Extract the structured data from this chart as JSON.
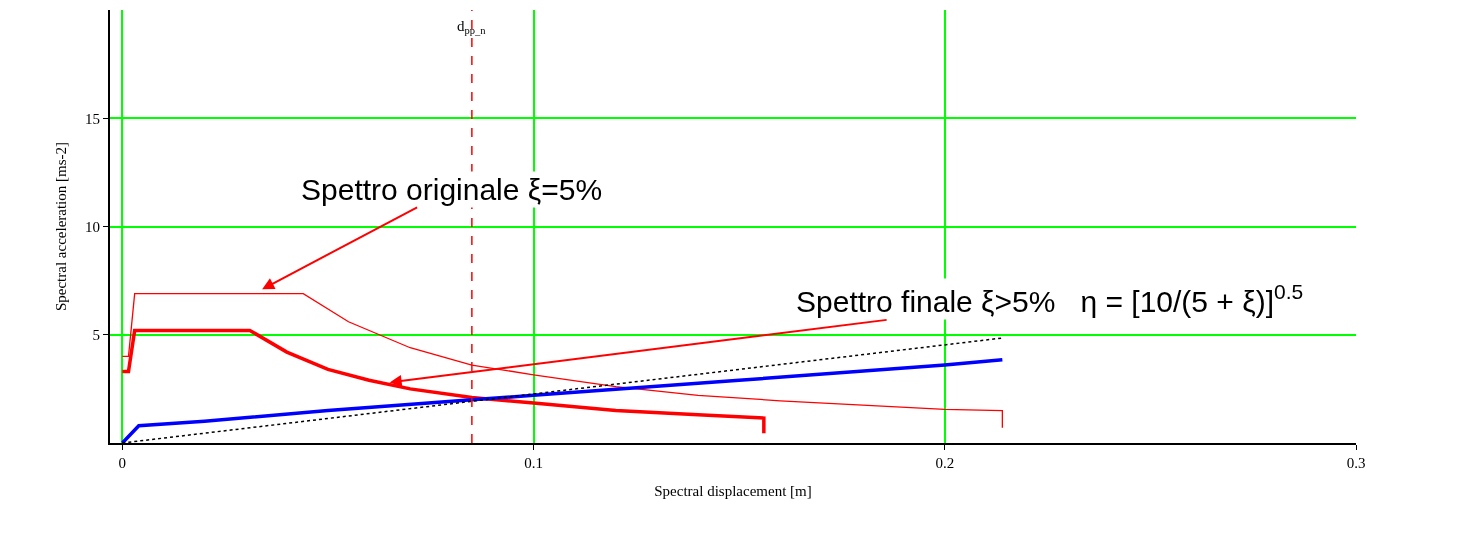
{
  "chart_data": {
    "type": "line",
    "xlabel": "Spectral displacement [m]",
    "ylabel": "Spectral acceleration [ms-2]",
    "xlim": [
      -0.003,
      0.3
    ],
    "ylim": [
      0,
      20
    ],
    "xticks": [
      0,
      0.1,
      0.2,
      0.3
    ],
    "yticks": [
      5,
      10,
      15
    ],
    "grid": true,
    "marker": "none",
    "series": [
      {
        "color": "#ff0000",
        "x": [
          0,
          0.0015,
          0.003,
          0.044,
          0.055,
          0.07,
          0.085,
          0.1,
          0.12,
          0.14,
          0.16,
          0.18,
          0.2,
          0.214,
          0.214
        ],
        "values": [
          4.0,
          4.0,
          6.9,
          6.9,
          5.6,
          4.4,
          3.6,
          3.15,
          2.6,
          2.2,
          1.95,
          1.75,
          1.55,
          1.5,
          0.7
        ]
      },
      {
        "color": "#ff0000",
        "x": [
          0,
          0.0015,
          0.003,
          0.031,
          0.04,
          0.05,
          0.06,
          0.07,
          0.085,
          0.1,
          0.12,
          0.14,
          0.156,
          0.156
        ],
        "values": [
          3.3,
          3.3,
          5.2,
          5.2,
          4.2,
          3.4,
          2.9,
          2.5,
          2.1,
          1.85,
          1.5,
          1.3,
          1.15,
          0.45
        ]
      },
      {
        "color": "#0000ff",
        "x": [
          0,
          0.004,
          0.02,
          0.05,
          0.085,
          0.1,
          0.15,
          0.2,
          0.214
        ],
        "values": [
          0,
          0.8,
          1.0,
          1.5,
          2.0,
          2.2,
          2.9,
          3.6,
          3.85
        ]
      },
      {
        "color": "#000000",
        "line_style": "dotted",
        "x": [
          0,
          0.214
        ],
        "values": [
          0,
          4.85
        ]
      }
    ],
    "ref_lines": [
      {
        "axis": "x",
        "value": 0.085,
        "label": "d$_{pp_n}$",
        "color": "#ff0000",
        "line_style": "dashed"
      }
    ],
    "annotations": [
      {
        "text": "Spettro originale ξ=5%",
        "x": 0.034,
        "y": 7.1
      },
      {
        "text": "Spettro finale ξ>5%   η = [10/(5 + ξ)]$^{0.5}$",
        "x": 0.065,
        "y": 2.8
      }
    ]
  }
}
